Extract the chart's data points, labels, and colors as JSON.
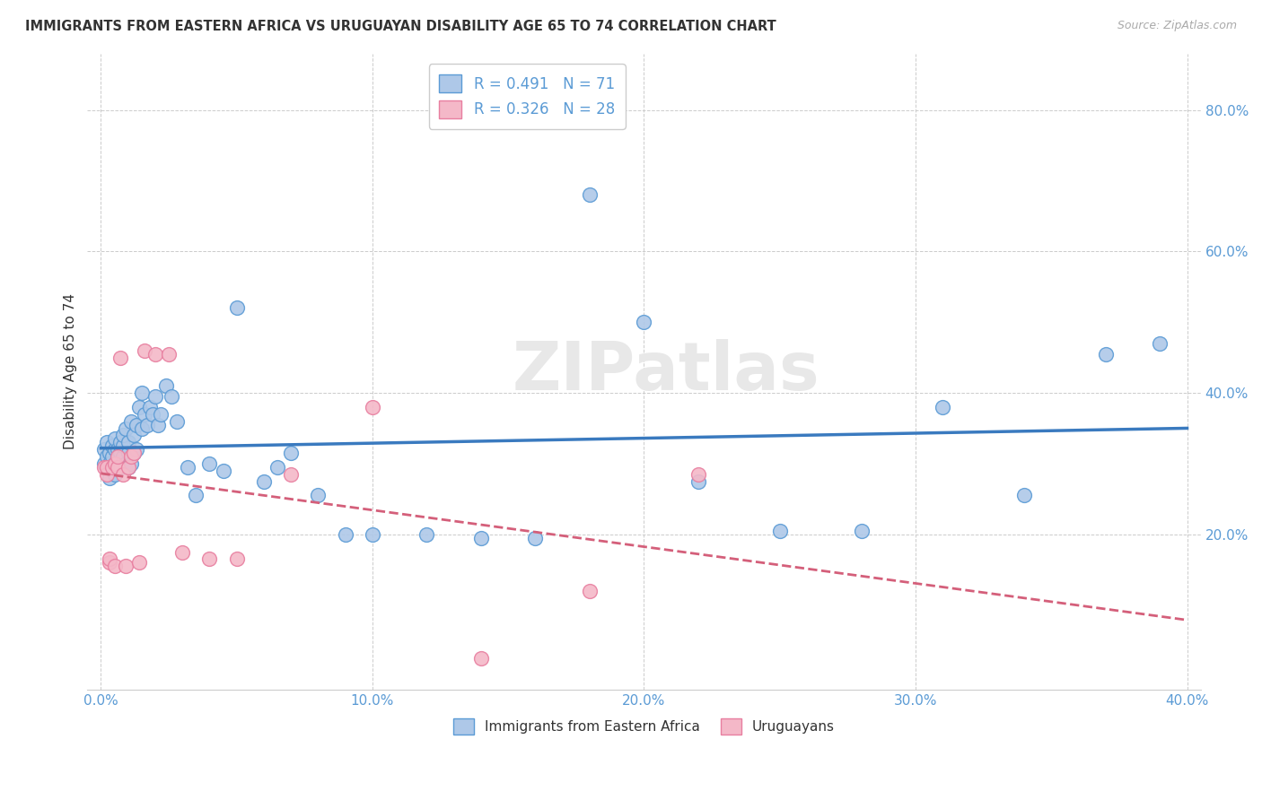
{
  "title": "IMMIGRANTS FROM EASTERN AFRICA VS URUGUAYAN DISABILITY AGE 65 TO 74 CORRELATION CHART",
  "source": "Source: ZipAtlas.com",
  "ylabel": "Disability Age 65 to 74",
  "x_tick_values": [
    0.0,
    0.1,
    0.2,
    0.3,
    0.4
  ],
  "y_tick_values": [
    0.2,
    0.4,
    0.6,
    0.8
  ],
  "xlim": [
    -0.005,
    0.405
  ],
  "ylim": [
    -0.02,
    0.88
  ],
  "legend_R1": "R = 0.491",
  "legend_N1": "N = 71",
  "legend_R2": "R = 0.326",
  "legend_N2": "N = 28",
  "blue_color": "#aec8e8",
  "blue_edge_color": "#5b9bd5",
  "pink_color": "#f4b8c8",
  "pink_edge_color": "#e87fa0",
  "blue_line_color": "#3a7abf",
  "pink_line_color": "#d45f7a",
  "watermark": "ZIPatlas",
  "legend_label1": "Immigrants from Eastern Africa",
  "legend_label2": "Uruguayans",
  "blue_x": [
    0.001,
    0.001,
    0.002,
    0.002,
    0.002,
    0.003,
    0.003,
    0.003,
    0.004,
    0.004,
    0.004,
    0.005,
    0.005,
    0.005,
    0.005,
    0.006,
    0.006,
    0.006,
    0.007,
    0.007,
    0.007,
    0.008,
    0.008,
    0.008,
    0.009,
    0.009,
    0.01,
    0.01,
    0.01,
    0.011,
    0.011,
    0.012,
    0.012,
    0.013,
    0.013,
    0.014,
    0.015,
    0.015,
    0.016,
    0.017,
    0.018,
    0.019,
    0.02,
    0.021,
    0.022,
    0.024,
    0.026,
    0.028,
    0.032,
    0.035,
    0.04,
    0.045,
    0.05,
    0.06,
    0.065,
    0.07,
    0.08,
    0.09,
    0.1,
    0.12,
    0.14,
    0.16,
    0.18,
    0.2,
    0.22,
    0.25,
    0.28,
    0.31,
    0.34,
    0.37,
    0.39
  ],
  "blue_y": [
    0.3,
    0.32,
    0.295,
    0.31,
    0.33,
    0.28,
    0.315,
    0.3,
    0.295,
    0.31,
    0.325,
    0.3,
    0.285,
    0.32,
    0.335,
    0.31,
    0.295,
    0.32,
    0.315,
    0.33,
    0.295,
    0.31,
    0.325,
    0.34,
    0.3,
    0.35,
    0.315,
    0.295,
    0.33,
    0.36,
    0.3,
    0.34,
    0.315,
    0.355,
    0.32,
    0.38,
    0.35,
    0.4,
    0.37,
    0.355,
    0.38,
    0.37,
    0.395,
    0.355,
    0.37,
    0.41,
    0.395,
    0.36,
    0.295,
    0.255,
    0.3,
    0.29,
    0.52,
    0.275,
    0.295,
    0.315,
    0.255,
    0.2,
    0.2,
    0.2,
    0.195,
    0.195,
    0.68,
    0.5,
    0.275,
    0.205,
    0.205,
    0.38,
    0.255,
    0.455,
    0.47
  ],
  "pink_x": [
    0.001,
    0.002,
    0.002,
    0.003,
    0.003,
    0.004,
    0.005,
    0.005,
    0.006,
    0.006,
    0.007,
    0.008,
    0.009,
    0.01,
    0.011,
    0.012,
    0.014,
    0.016,
    0.02,
    0.025,
    0.03,
    0.04,
    0.05,
    0.07,
    0.1,
    0.14,
    0.18,
    0.22
  ],
  "pink_y": [
    0.295,
    0.285,
    0.295,
    0.16,
    0.165,
    0.295,
    0.3,
    0.155,
    0.295,
    0.31,
    0.45,
    0.285,
    0.155,
    0.295,
    0.31,
    0.315,
    0.16,
    0.46,
    0.455,
    0.455,
    0.175,
    0.165,
    0.165,
    0.285,
    0.38,
    0.025,
    0.12,
    0.285
  ]
}
